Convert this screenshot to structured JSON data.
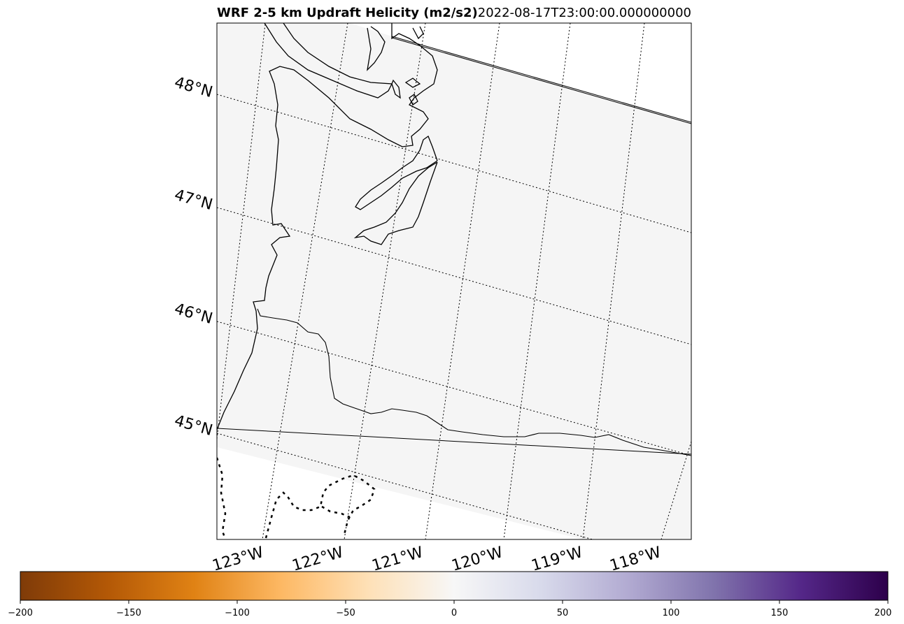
{
  "title": {
    "left": "WRF 2-5 km Updraft Helicity (m2/s2)",
    "right": "2022-08-17T23:00:00.000000000"
  },
  "map": {
    "lat_labels": [
      "48°N",
      "47°N",
      "46°N",
      "45°N"
    ],
    "lon_labels": [
      "123°W",
      "122°W",
      "121°W",
      "120°W",
      "119°W",
      "118°W"
    ],
    "domain_fill": "#f5f5f5",
    "line_color": "#000000"
  },
  "colorbar": {
    "ticks": [
      "−200",
      "−150",
      "−100",
      "−50",
      "0",
      "50",
      "100",
      "150",
      "200"
    ],
    "range": [
      -200,
      200
    ],
    "colormap": "PuOr",
    "colors": [
      "#7f3b08",
      "#b35806",
      "#e08214",
      "#fdb863",
      "#fee0b6",
      "#f7f7f7",
      "#d8daeb",
      "#b2abd2",
      "#8073ac",
      "#542788",
      "#2d004b"
    ]
  }
}
